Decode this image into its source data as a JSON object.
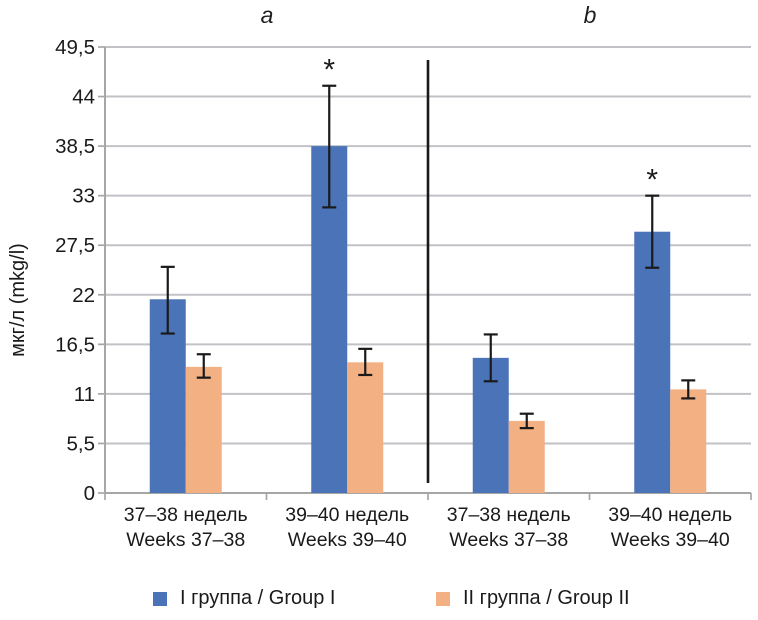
{
  "chart_data": {
    "type": "bar",
    "title": "",
    "ylabel": "мкг/л (mkg/l)",
    "xlabel": "",
    "ylim": [
      0,
      49.5
    ],
    "ytick_values": [
      0,
      5.5,
      11,
      16.5,
      22,
      27.5,
      33,
      38.5,
      44,
      49.5
    ],
    "ytick_labels": [
      "0",
      "5,5",
      "11",
      "16,5",
      "22",
      "27,5",
      "33",
      "38,5",
      "44",
      "49,5"
    ],
    "grid": true,
    "legend_position": "bottom",
    "significance_marker": "*",
    "series_names": [
      "I группа / Group I",
      "II группа / Group II"
    ],
    "series_colors": [
      "#4a73b8",
      "#f2b083"
    ],
    "panels": [
      {
        "label": "a",
        "categories": [
          {
            "line1": "37–38 недель",
            "line2": "Weeks 37–38"
          },
          {
            "line1": "39–40 недель",
            "line2": "Weeks 39–40"
          }
        ],
        "series": [
          {
            "name": "I группа / Group I",
            "values": [
              21.5,
              38.5
            ],
            "err_high": [
              3.6,
              6.7
            ],
            "err_low": [
              3.8,
              6.8
            ],
            "significant": [
              false,
              true
            ]
          },
          {
            "name": "II группа / Group II",
            "values": [
              14,
              14.5
            ],
            "err_high": [
              1.4,
              1.5
            ],
            "err_low": [
              1.2,
              1.4
            ],
            "significant": [
              false,
              false
            ]
          }
        ]
      },
      {
        "label": "b",
        "categories": [
          {
            "line1": "37–38 недель",
            "line2": "Weeks 37–38"
          },
          {
            "line1": "39–40 недель",
            "line2": "Weeks 39–40"
          }
        ],
        "series": [
          {
            "name": "I группа / Group I",
            "values": [
              15,
              29
            ],
            "err_high": [
              2.6,
              4
            ],
            "err_low": [
              2.6,
              4
            ],
            "significant": [
              false,
              true
            ]
          },
          {
            "name": "II группа / Group II",
            "values": [
              8,
              11.5
            ],
            "err_high": [
              0.8,
              1
            ],
            "err_low": [
              0.8,
              1
            ],
            "significant": [
              false,
              false
            ]
          }
        ]
      }
    ],
    "colors": {
      "group_i": "#4a73b8",
      "group_ii": "#f2b083",
      "gridline": "#c1c2c6",
      "axis": "#a6a6a6",
      "error_bar": "#1a1a1a",
      "panel_divider": "#1a1a1a"
    }
  },
  "legend": {
    "items": [
      {
        "label": "I группа / Group I",
        "color": "#4a73b8"
      },
      {
        "label": "II группа / Group II",
        "color": "#f2b083"
      }
    ]
  }
}
